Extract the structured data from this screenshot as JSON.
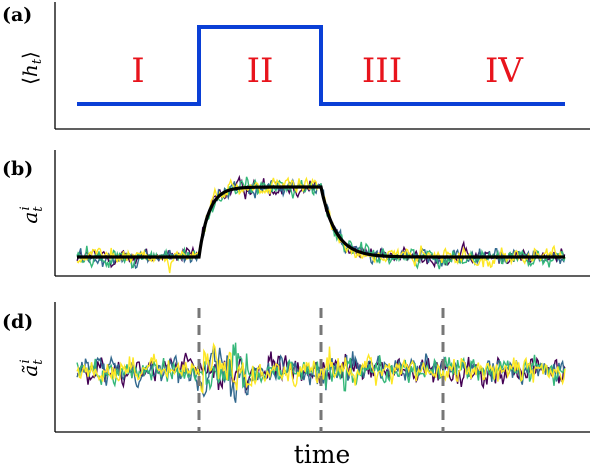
{
  "figure": {
    "xlabel": "time",
    "colors": {
      "signal": "#0a3fd6",
      "region_text": "#e8141c",
      "mean": "#000000",
      "boundary": "#777777",
      "traces": [
        "#440154",
        "#31688e",
        "#35b779",
        "#fde725"
      ]
    }
  },
  "chart_data": [
    {
      "type": "line",
      "panel": "(a)",
      "ylabel": "⟨h_t⟩",
      "x": [
        0,
        1,
        1,
        2,
        2,
        4
      ],
      "y": [
        0,
        0,
        1,
        1,
        0,
        0
      ],
      "regions": [
        "I",
        "II",
        "III",
        "IV"
      ],
      "grid": false
    },
    {
      "type": "line",
      "panel": "(b)",
      "ylabel": "a_t^i",
      "series": [
        {
          "role": "trajectories",
          "count": 4,
          "low": 0,
          "high": 1,
          "noise": 0.1
        },
        {
          "role": "mean",
          "low": 0,
          "high": 1,
          "rise_time": 0.08,
          "decay_time": 0.12
        }
      ],
      "grid": false
    },
    {
      "type": "line",
      "panel": "(d)",
      "ylabel": "ã_t^i",
      "series": [
        {
          "role": "fluctuations",
          "count": 4,
          "mean": 0,
          "base_noise": 1,
          "transition_noise": 2
        }
      ],
      "vlines": [
        1,
        2,
        3
      ],
      "grid": false
    }
  ]
}
